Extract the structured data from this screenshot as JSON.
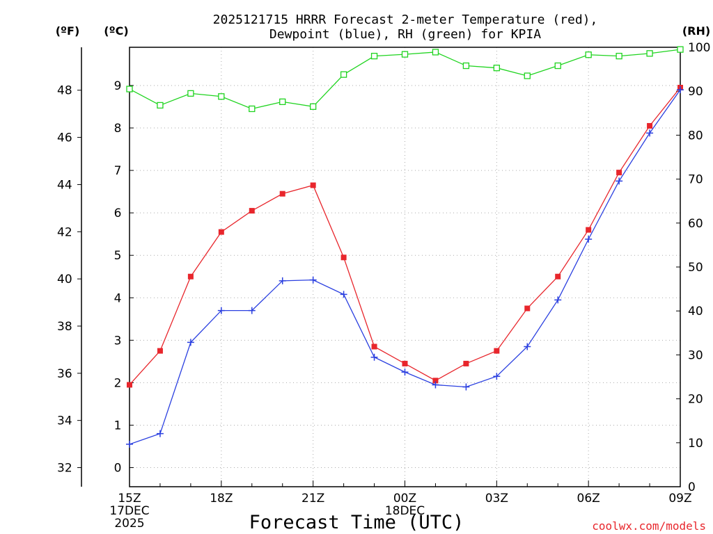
{
  "chart_data": {
    "type": "line",
    "title_lines": [
      "2025121715 HRRR Forecast 2-meter Temperature (red),",
      "Dewpoint (blue), RH (green) for KPIA"
    ],
    "xlabel": "Forecast Time (UTC)",
    "credit": "coolwx.com/models",
    "units": {
      "f": "(ºF)",
      "c": "(ºC)",
      "rh": "(RH)"
    },
    "x_ticks": [
      {
        "hour": 0,
        "lines": [
          "15Z",
          "17DEC",
          "2025"
        ]
      },
      {
        "hour": 3,
        "lines": [
          "18Z"
        ]
      },
      {
        "hour": 6,
        "lines": [
          "21Z"
        ]
      },
      {
        "hour": 9,
        "lines": [
          "00Z",
          "18DEC"
        ]
      },
      {
        "hour": 12,
        "lines": [
          "03Z"
        ]
      },
      {
        "hour": 15,
        "lines": [
          "06Z"
        ]
      },
      {
        "hour": 18,
        "lines": [
          "09Z"
        ]
      }
    ],
    "x": [
      0,
      1,
      2,
      3,
      4,
      5,
      6,
      7,
      8,
      9,
      10,
      11,
      12,
      13,
      14,
      15,
      16,
      17,
      18
    ],
    "xlim": [
      0,
      18
    ],
    "ylim_c": [
      -0.45,
      9.9
    ],
    "ylim_rh": [
      0,
      100
    ],
    "c_ticks": [
      0,
      1,
      2,
      3,
      4,
      5,
      6,
      7,
      8,
      9
    ],
    "f_ticks": [
      32,
      34,
      36,
      38,
      40,
      42,
      44,
      46,
      48
    ],
    "rh_ticks": [
      0,
      10,
      20,
      30,
      40,
      50,
      60,
      70,
      80,
      90,
      100
    ],
    "grid": true,
    "series": [
      {
        "name": "Temperature",
        "axis": "c",
        "color": "#e8262c",
        "marker": "filled-square",
        "values": [
          1.95,
          2.75,
          4.5,
          5.55,
          6.05,
          6.45,
          6.65,
          4.95,
          2.85,
          2.45,
          2.05,
          2.45,
          2.75,
          3.75,
          4.5,
          5.6,
          6.95,
          8.05,
          8.95
        ]
      },
      {
        "name": "Dewpoint",
        "axis": "c",
        "color": "#2a3fe0",
        "marker": "plus",
        "values": [
          0.55,
          0.8,
          2.95,
          3.7,
          3.7,
          4.4,
          4.42,
          4.08,
          2.6,
          2.25,
          1.95,
          1.9,
          2.15,
          2.85,
          3.95,
          5.38,
          6.75,
          7.88,
          8.9
        ]
      },
      {
        "name": "RH",
        "axis": "rh",
        "color": "#1fd41f",
        "marker": "open-square",
        "values": [
          90.5,
          86.8,
          89.5,
          88.8,
          86.0,
          87.6,
          86.5,
          93.8,
          98.0,
          98.4,
          98.9,
          95.8,
          95.3,
          93.5,
          95.8,
          98.3,
          98.0,
          98.6,
          99.5
        ]
      }
    ]
  }
}
